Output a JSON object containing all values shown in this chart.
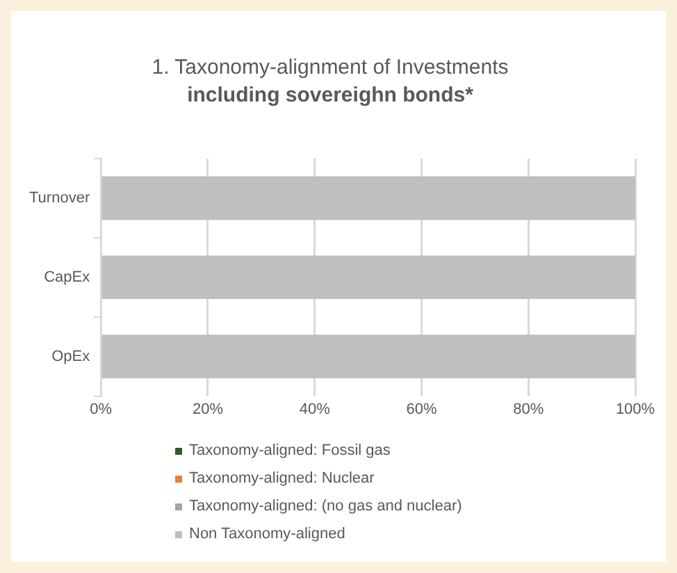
{
  "chart_data": {
    "type": "bar",
    "orientation": "horizontal",
    "stacked": true,
    "title": "1. Taxonomy-alignment of Investments",
    "subtitle": "including sovereighn bonds*",
    "categories": [
      "Turnover",
      "CapEx",
      "OpEx"
    ],
    "series": [
      {
        "name": "Taxonomy-aligned: Fossil gas",
        "color": "#375623",
        "values": [
          0,
          0,
          0
        ]
      },
      {
        "name": "Taxonomy-aligned: Nuclear",
        "color": "#ed7d31",
        "values": [
          0,
          0,
          0
        ]
      },
      {
        "name": "Taxonomy-aligned: (no gas and nuclear)",
        "color": "#a5a5a5",
        "values": [
          0,
          0,
          0
        ]
      },
      {
        "name": "Non Taxonomy-aligned",
        "color": "#bfbfbf",
        "values": [
          100,
          100,
          100
        ]
      }
    ],
    "xlim": [
      0,
      100
    ],
    "xticks": [
      {
        "value": 0,
        "label": "0%"
      },
      {
        "value": 20,
        "label": "20%"
      },
      {
        "value": 40,
        "label": "40%"
      },
      {
        "value": 60,
        "label": "60%"
      },
      {
        "value": 80,
        "label": "80%"
      },
      {
        "value": 100,
        "label": "100%"
      }
    ],
    "grid": "x",
    "legend": "bottom"
  }
}
